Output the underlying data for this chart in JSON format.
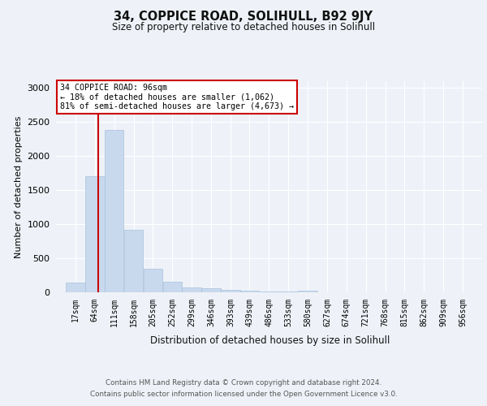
{
  "title_line1": "34, COPPICE ROAD, SOLIHULL, B92 9JY",
  "title_line2": "Size of property relative to detached houses in Solihull",
  "xlabel": "Distribution of detached houses by size in Solihull",
  "ylabel": "Number of detached properties",
  "bin_labels": [
    "17sqm",
    "64sqm",
    "111sqm",
    "158sqm",
    "205sqm",
    "252sqm",
    "299sqm",
    "346sqm",
    "393sqm",
    "439sqm",
    "486sqm",
    "533sqm",
    "580sqm",
    "627sqm",
    "674sqm",
    "721sqm",
    "768sqm",
    "815sqm",
    "862sqm",
    "909sqm",
    "956sqm"
  ],
  "bin_edges": [
    17,
    64,
    111,
    158,
    205,
    252,
    299,
    346,
    393,
    439,
    486,
    533,
    580,
    627,
    674,
    721,
    768,
    815,
    862,
    909,
    956
  ],
  "bar_heights": [
    140,
    1700,
    2390,
    920,
    345,
    160,
    75,
    55,
    35,
    25,
    15,
    10,
    25,
    0,
    0,
    0,
    0,
    0,
    0,
    0
  ],
  "bar_color": "#c8d9ed",
  "bar_edge_color": "#a8c0dc",
  "property_size": 96,
  "annotation_line1": "34 COPPICE ROAD: 96sqm",
  "annotation_line2": "← 18% of detached houses are smaller (1,062)",
  "annotation_line3": "81% of semi-detached houses are larger (4,673) →",
  "vline_color": "#cc0000",
  "annotation_box_edgecolor": "#cc0000",
  "annotation_box_facecolor": "#ffffff",
  "ylim": [
    0,
    3100
  ],
  "yticks": [
    0,
    500,
    1000,
    1500,
    2000,
    2500,
    3000
  ],
  "footer_line1": "Contains HM Land Registry data © Crown copyright and database right 2024.",
  "footer_line2": "Contains public sector information licensed under the Open Government Licence v3.0.",
  "background_color": "#eef2f8",
  "plot_bg_color": "#eef2f8"
}
